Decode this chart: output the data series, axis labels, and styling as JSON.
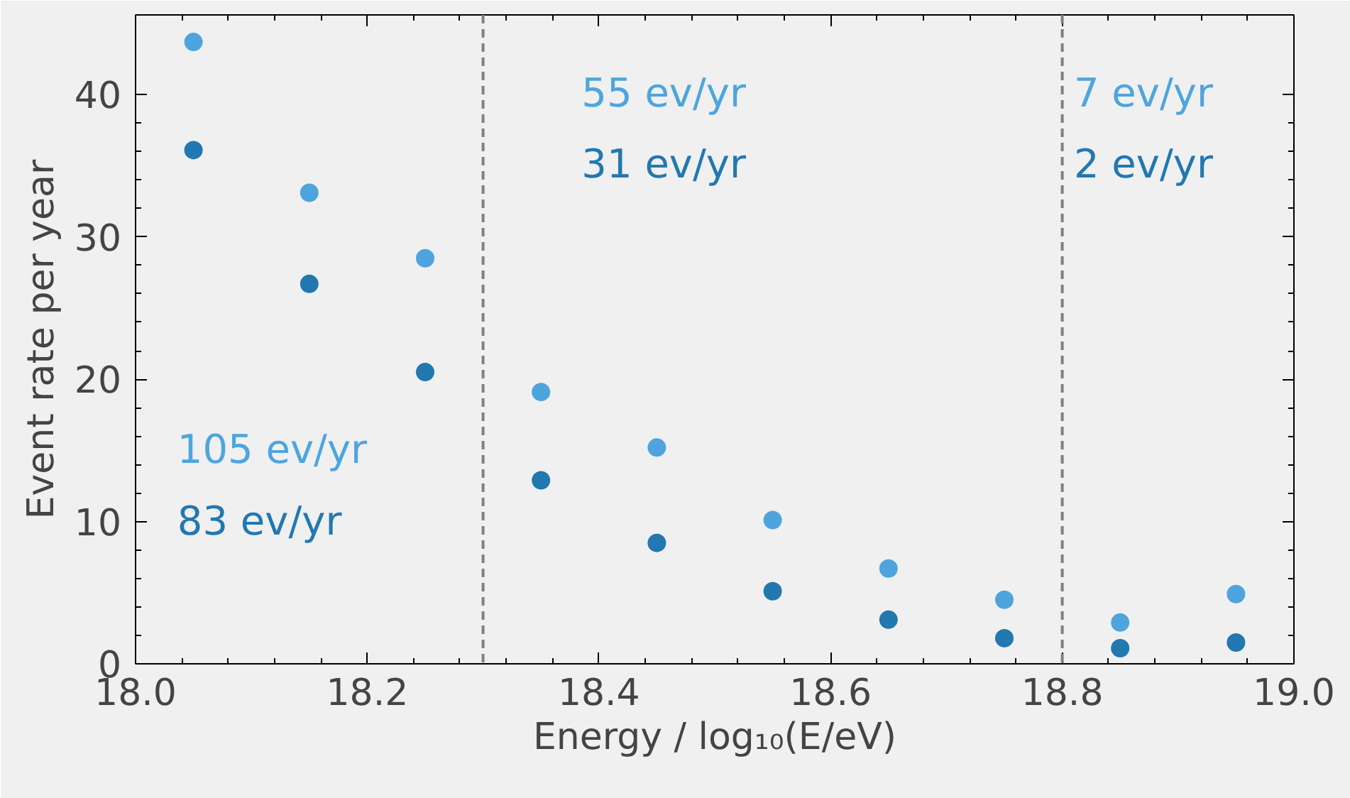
{
  "chart_data": {
    "type": "scatter",
    "xlabel": "Energy / log₁₀(E/eV)",
    "ylabel": "Event rate per year",
    "x": [
      18.05,
      18.15,
      18.25,
      18.35,
      18.45,
      18.55,
      18.65,
      18.75,
      18.85,
      18.95
    ],
    "series": [
      {
        "color": "#4ea5dd",
        "values": [
          43.7,
          33.1,
          28.5,
          19.1,
          15.2,
          10.1,
          6.7,
          4.5,
          2.9,
          4.9
        ]
      },
      {
        "color": "#2278b0",
        "values": [
          36.1,
          26.7,
          20.5,
          12.9,
          8.5,
          5.1,
          3.1,
          1.8,
          1.1,
          1.5
        ]
      }
    ],
    "xlim": [
      18.0,
      19.0
    ],
    "ylim": [
      0,
      45.6
    ],
    "xticks": [
      {
        "value": 18.0,
        "label": "18.0"
      },
      {
        "value": 18.2,
        "label": "18.2"
      },
      {
        "value": 18.4,
        "label": "18.4"
      },
      {
        "value": 18.6,
        "label": "18.6"
      },
      {
        "value": 18.8,
        "label": "18.8"
      },
      {
        "value": 19.0,
        "label": "19.0"
      }
    ],
    "yticks": [
      0,
      10,
      20,
      30,
      40
    ],
    "ref_lines": [
      {
        "axis": "x",
        "value": 18.3,
        "color": "#808080",
        "line_style": "dashed"
      },
      {
        "axis": "x",
        "value": 18.8,
        "color": "#808080",
        "line_style": "dashed"
      }
    ],
    "annotations": [
      "105 ev/yr",
      "83 ev/yr",
      "55 ev/yr",
      "31 ev/yr",
      "7 ev/yr",
      "2 ev/yr"
    ],
    "marker": "circle",
    "grid": false
  }
}
